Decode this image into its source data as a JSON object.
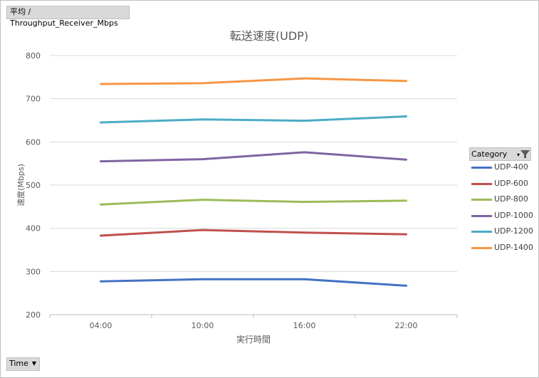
{
  "values_field": {
    "label": "平均 / Throughput_Receiver_Mbps"
  },
  "axis_field": {
    "label": "Time"
  },
  "legend_filter": {
    "label": "Category"
  },
  "chart_data": {
    "type": "line",
    "title": "転送速度(UDP)",
    "xlabel": "実行時間",
    "ylabel": "速度(Mbps)",
    "categories": [
      "04:00",
      "10:00",
      "16:00",
      "22:00"
    ],
    "ylim": [
      200,
      800
    ],
    "yticks": [
      200,
      300,
      400,
      500,
      600,
      700,
      800
    ],
    "grid": true,
    "legend_position": "right",
    "series": [
      {
        "name": "UDP-400",
        "color": "#4472c4",
        "values": [
          277,
          282,
          282,
          267
        ]
      },
      {
        "name": "UDP-600",
        "color": "#c0504d",
        "values": [
          383,
          396,
          390,
          386
        ]
      },
      {
        "name": "UDP-800",
        "color": "#9bbb59",
        "values": [
          455,
          466,
          461,
          464
        ]
      },
      {
        "name": "UDP-1000",
        "color": "#8064a2",
        "values": [
          555,
          560,
          576,
          559
        ]
      },
      {
        "name": "UDP-1200",
        "color": "#4bacc6",
        "values": [
          645,
          652,
          649,
          659
        ]
      },
      {
        "name": "UDP-1400",
        "color": "#f79646",
        "values": [
          734,
          736,
          747,
          741
        ]
      }
    ]
  }
}
